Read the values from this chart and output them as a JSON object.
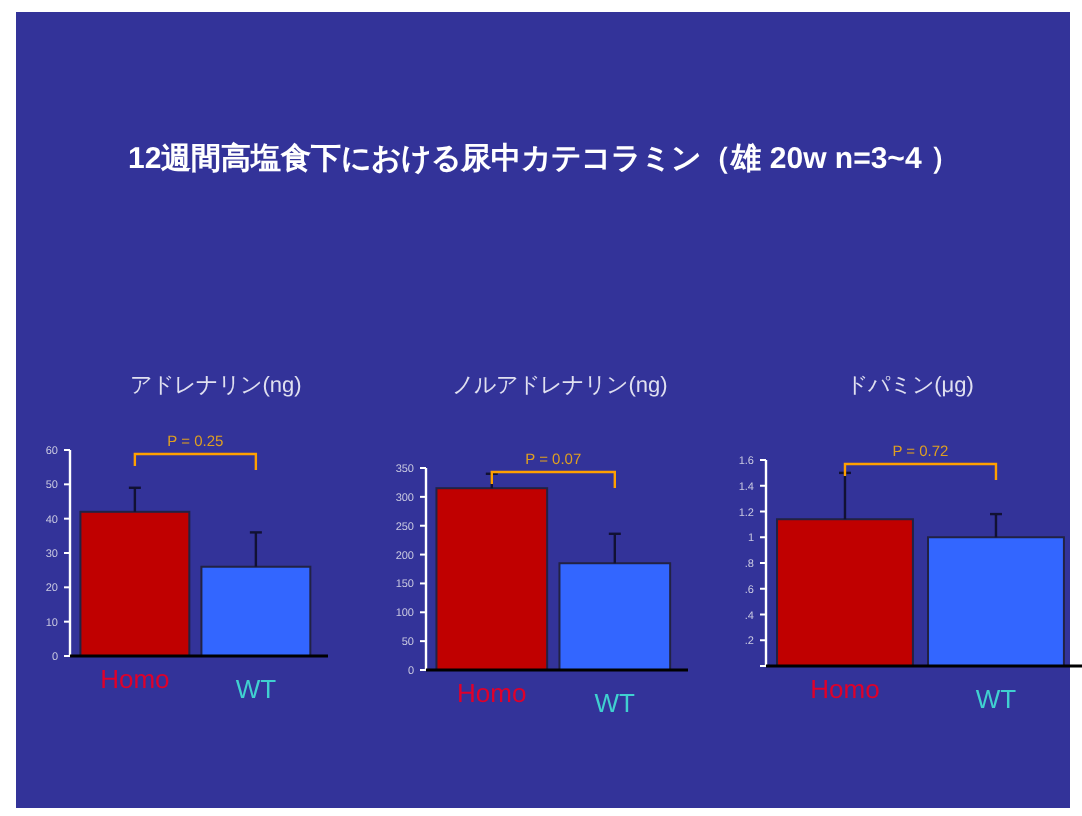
{
  "chart_data": [
    {
      "type": "bar",
      "title": "アドレナリン(ng)",
      "categories": [
        "Homo",
        "WT"
      ],
      "values": [
        42,
        26
      ],
      "colors": [
        "#c00000",
        "#3366ff"
      ],
      "errors": [
        [
          42,
          49
        ],
        [
          26,
          36
        ]
      ],
      "ylim": [
        0,
        60
      ],
      "yticks": [
        0,
        10,
        20,
        30,
        40,
        50,
        60
      ],
      "annotations": [
        "12週間高塩食下における尿中カテコラミン（雄 20w n=3~4 ）",
        "P = 0.25"
      ]
    },
    {
      "type": "bar",
      "title": "ノルアドレナリン(ng)",
      "categories": [
        "Homo",
        "WT"
      ],
      "values": [
        315,
        185
      ],
      "colors": [
        "#c00000",
        "#3366ff"
      ],
      "errors": [
        [
          315,
          340
        ],
        [
          185,
          236
        ]
      ],
      "ylim": [
        0,
        350
      ],
      "yticks": [
        0,
        50,
        100,
        150,
        200,
        250,
        300,
        350
      ],
      "annotations": [
        "P = 0.07"
      ]
    },
    {
      "type": "bar",
      "title": "ドパミン(μg)",
      "categories": [
        "Homo",
        "WT"
      ],
      "values": [
        1.14,
        1.0
      ],
      "colors": [
        "#c00000",
        "#3366ff"
      ],
      "errors": [
        [
          1.14,
          1.5
        ],
        [
          1.0,
          1.18
        ]
      ],
      "ylim": [
        0,
        1.6
      ],
      "yticks": [
        {
          "value": 0,
          "label": null
        },
        {
          "value": 0.2,
          "label": ".2"
        },
        {
          "value": 0.4,
          "label": ".4"
        },
        {
          "value": 0.6,
          "label": ".6"
        },
        {
          "value": 0.8,
          "label": ".8"
        },
        1,
        1.2,
        1.4,
        1.6
      ],
      "annotations": [
        "P = 0.72"
      ]
    }
  ]
}
